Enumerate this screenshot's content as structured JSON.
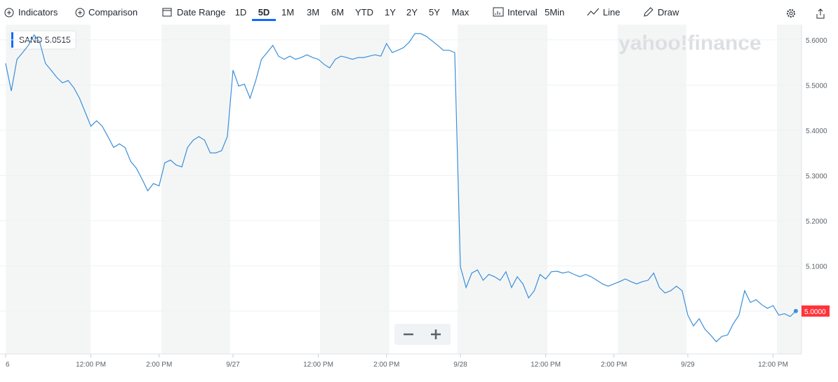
{
  "toolbar": {
    "indicators": "Indicators",
    "comparison": "Comparison",
    "date_range": "Date Range",
    "ranges": [
      "1D",
      "5D",
      "1M",
      "3M",
      "6M",
      "YTD",
      "1Y",
      "2Y",
      "5Y",
      "Max"
    ],
    "interval_label": "Interval",
    "interval": "5Min",
    "chart_style": "Line",
    "draw": "Draw"
  },
  "logo": "yahoo!finance",
  "chart_data": {
    "type": "line",
    "tooltip_price": "5.0515",
    "last_price_label": "5.0000",
    "categories": [
      "6",
      null,
      null,
      null,
      null,
      null,
      null,
      null,
      null,
      null,
      null,
      null,
      null,
      null,
      null,
      "12:00 PM",
      null,
      null,
      null,
      null,
      null,
      null,
      null,
      null,
      null,
      null,
      null,
      "2:00 PM",
      null,
      null,
      null,
      null,
      null,
      null,
      null,
      null,
      null,
      null,
      null,
      null,
      "9/27",
      null,
      null,
      null,
      null,
      null,
      null,
      null,
      null,
      null,
      null,
      null,
      null,
      null,
      null,
      "12:00 PM",
      null,
      null,
      null,
      null,
      null,
      null,
      null,
      null,
      null,
      null,
      null,
      "2:00 PM",
      null,
      null,
      null,
      null,
      null,
      null,
      null,
      null,
      null,
      null,
      null,
      null,
      "9/28",
      null,
      null,
      null,
      null,
      null,
      null,
      null,
      null,
      null,
      null,
      null,
      null,
      null,
      null,
      "12:00 PM",
      null,
      null,
      null,
      null,
      null,
      null,
      null,
      null,
      null,
      null,
      null,
      "2:00 PM",
      null,
      null,
      null,
      null,
      null,
      null,
      null,
      null,
      null,
      null,
      null,
      null,
      "9/29",
      null,
      null,
      null,
      null,
      null,
      null,
      null,
      null,
      null,
      null,
      null,
      null,
      null,
      null,
      "12:00 PM",
      null,
      null,
      null,
      null
    ],
    "series": [
      {
        "name": "SAND",
        "color": "#3b8fd9",
        "values": [
          5.548,
          5.487,
          5.557,
          5.572,
          5.588,
          5.611,
          5.595,
          5.548,
          5.533,
          5.517,
          5.505,
          5.51,
          5.494,
          5.471,
          5.44,
          5.409,
          5.421,
          5.409,
          5.386,
          5.362,
          5.37,
          5.362,
          5.331,
          5.316,
          5.292,
          5.266,
          5.282,
          5.277,
          5.328,
          5.334,
          5.323,
          5.319,
          5.362,
          5.378,
          5.386,
          5.378,
          5.35,
          5.35,
          5.355,
          5.386,
          5.533,
          5.498,
          5.502,
          5.471,
          5.51,
          5.557,
          5.572,
          5.588,
          5.564,
          5.557,
          5.564,
          5.557,
          5.561,
          5.567,
          5.561,
          5.557,
          5.546,
          5.538,
          5.557,
          5.564,
          5.561,
          5.557,
          5.561,
          5.561,
          5.564,
          5.567,
          5.564,
          5.592,
          5.572,
          5.577,
          5.583,
          5.595,
          5.614,
          5.614,
          5.608,
          5.598,
          5.588,
          5.577,
          5.577,
          5.572,
          5.098,
          5.052,
          5.084,
          5.091,
          5.068,
          5.081,
          5.076,
          5.068,
          5.087,
          5.052,
          5.076,
          5.06,
          5.029,
          5.045,
          5.081,
          5.071,
          5.087,
          5.088,
          5.084,
          5.087,
          5.081,
          5.076,
          5.081,
          5.076,
          5.068,
          5.06,
          5.055,
          5.06,
          5.065,
          5.071,
          5.065,
          5.06,
          5.065,
          5.068,
          5.084,
          5.052,
          5.04,
          5.045,
          5.055,
          5.045,
          4.991,
          4.967,
          4.983,
          4.96,
          4.947,
          4.932,
          4.944,
          4.947,
          4.972,
          4.991,
          5.045,
          5.019,
          5.025,
          5.014,
          5.006,
          5.012,
          4.991,
          4.994,
          4.988,
          5.0
        ]
      }
    ],
    "ylim": [
      4.905,
      5.634
    ],
    "yticks": [
      {
        "value": 5.0,
        "label": "5.0000"
      },
      {
        "value": 5.1,
        "label": "5.1000"
      },
      {
        "value": 5.2,
        "label": "5.2000"
      },
      {
        "value": 5.3,
        "label": "5.3000"
      },
      {
        "value": 5.4,
        "label": "5.4000"
      },
      {
        "value": 5.5,
        "label": "5.5000"
      },
      {
        "value": 5.6,
        "label": "5.6000"
      }
    ],
    "grid": true
  }
}
